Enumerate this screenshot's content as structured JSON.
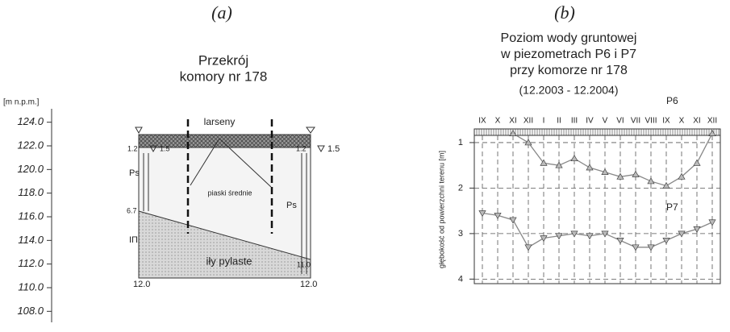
{
  "panel_a": {
    "panel_label": "(a)",
    "title_line1": "Przekrój",
    "title_line2": "komory nr 178",
    "scale_label": "[m n.p.m.]",
    "scale_lim": [
      107.0,
      125.0
    ],
    "scale_ticks": [
      {
        "value": 124,
        "label": "124.0"
      },
      {
        "value": 122,
        "label": "122.0"
      },
      {
        "value": 120,
        "label": "120.0"
      },
      {
        "value": 118,
        "label": "118.0"
      },
      {
        "value": 116,
        "label": "116.0"
      },
      {
        "value": 114,
        "label": "114.0"
      },
      {
        "value": 112,
        "label": "112.0"
      },
      {
        "value": 110,
        "label": "110.0"
      },
      {
        "value": 108,
        "label": "108.0"
      }
    ],
    "labels": {
      "sheet_piles": "larseny",
      "sand": "piaski średnie",
      "ps_left": "Ps",
      "ps_right": "Ps",
      "clay": "iły pylaste",
      "clay_symbol": "IΠ",
      "left_water": "1.2",
      "left_water_level": "1.5",
      "right_water": "1.2",
      "right_water_level": "1.5",
      "left_clay_top": "6.7",
      "right_clay_top": "11.0",
      "left_bottom": "12.0",
      "right_bottom": "12.0"
    }
  },
  "chart_data": {
    "type": "line",
    "panel_label": "(b)",
    "title": [
      "Poziom wody gruntowej",
      "w piezometrach P6 i P7",
      "przy komorze nr 178"
    ],
    "subtitle": "(12.2003 - 12.2004)",
    "y_label": "głębokość od powierzchni terenu [m]",
    "categories": [
      "IX",
      "X",
      "XI",
      "XII",
      "I",
      "II",
      "III",
      "IV",
      "V",
      "VI",
      "VII",
      "VIII",
      "IX",
      "X",
      "XI",
      "XII"
    ],
    "ylim": [
      0.7,
      4.1
    ],
    "y_inverted": true,
    "yticks": [
      1,
      2,
      3,
      4
    ],
    "grid": true,
    "series": [
      {
        "name": "P6",
        "color": "#888888",
        "marker": "triangle-up",
        "values": [
          null,
          null,
          0.8,
          1.0,
          1.45,
          1.5,
          1.35,
          1.55,
          1.65,
          1.75,
          1.7,
          1.85,
          1.95,
          1.75,
          1.45,
          0.8
        ]
      },
      {
        "name": "P7",
        "color": "#888888",
        "marker": "triangle-down",
        "values": [
          2.55,
          2.6,
          2.7,
          3.3,
          3.1,
          3.05,
          3.0,
          3.05,
          3.0,
          3.15,
          3.3,
          3.3,
          3.15,
          3.0,
          2.9,
          2.75
        ]
      }
    ]
  }
}
